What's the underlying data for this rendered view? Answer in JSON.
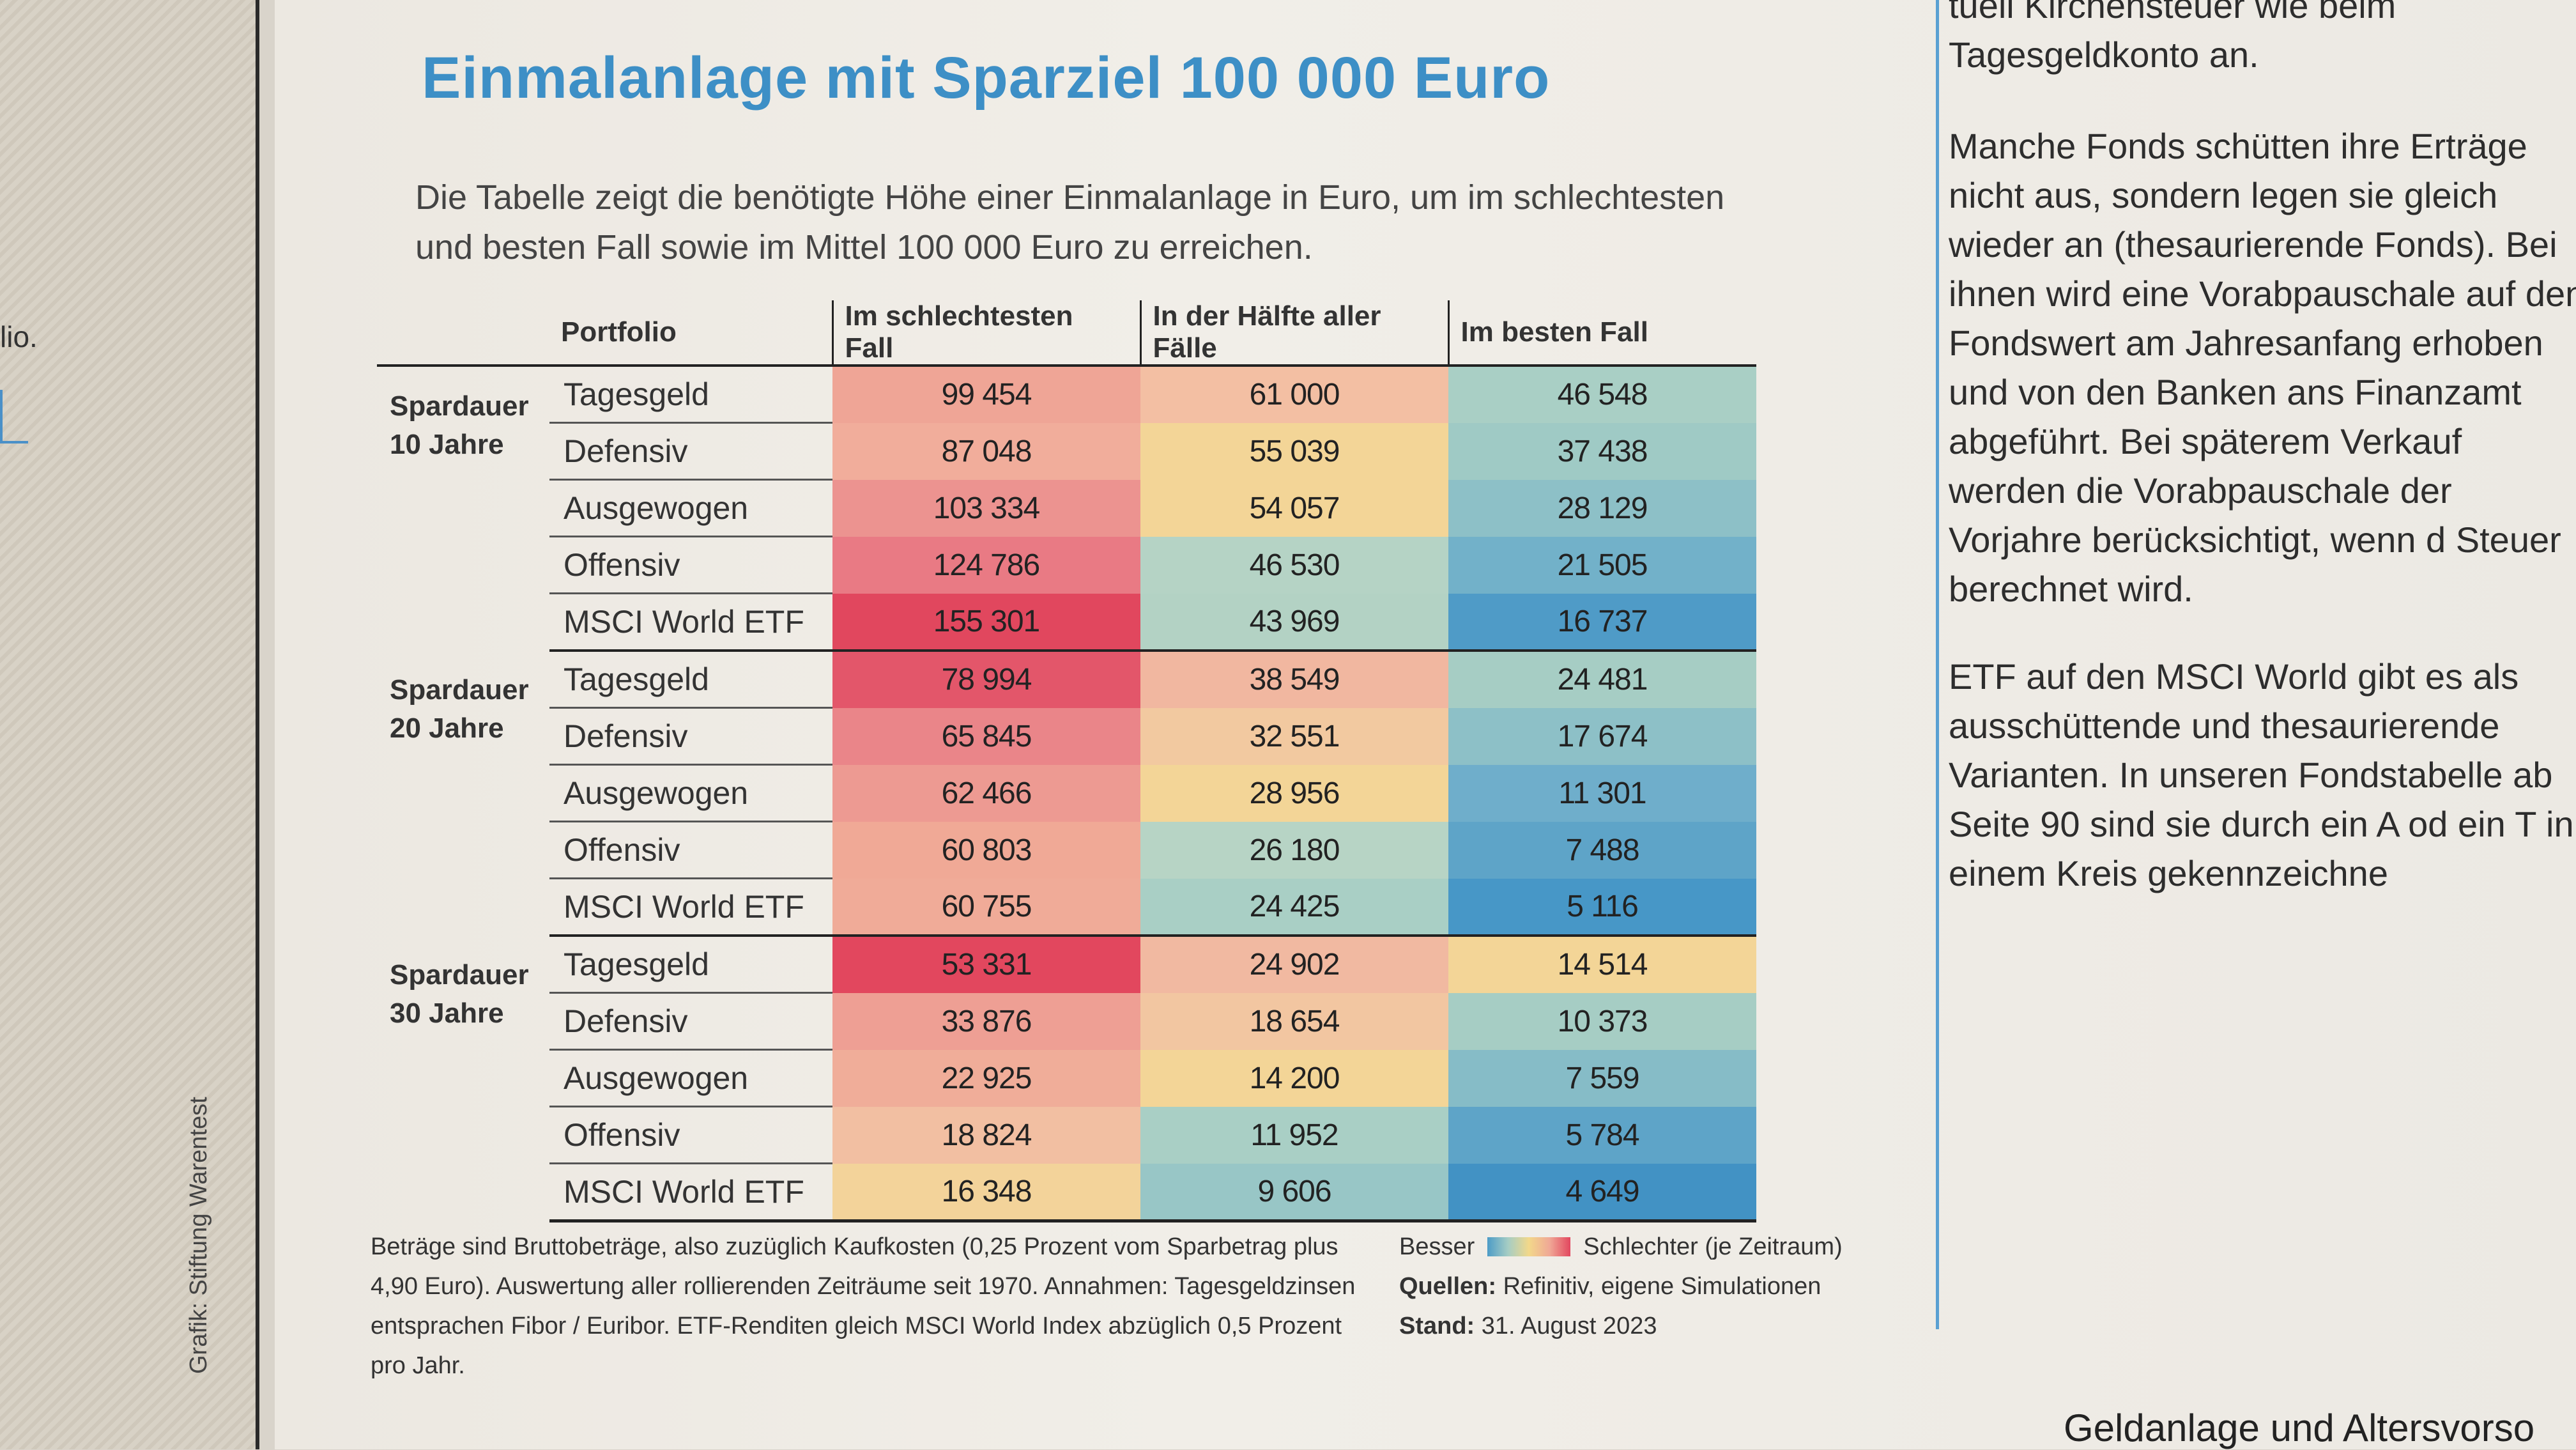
{
  "left_page": {
    "fragment": "lio.",
    "credit": "Grafik: Stiftung Warentest"
  },
  "title": "Einmalanlage mit Sparziel 100 000 Euro",
  "subtitle": "Die Tabelle zeigt die benötigte Höhe einer Einmalanlage in Euro, um im schlechtesten und besten Fall sowie im Mittel 100 000 Euro zu erreichen.",
  "table": {
    "headers": [
      "Portfolio",
      "Im schlechtesten Fall",
      "In der Hälfte aller Fälle",
      "Im besten Fall"
    ],
    "groups": [
      {
        "label1": "Spardauer",
        "label2": "10 Jahre",
        "rows": [
          {
            "portfolio": "Tagesgeld",
            "worst": "99 454",
            "median": "61 000",
            "best": "46 548",
            "c": [
              "#efa596",
              "#f3bfa3",
              "#a9cfc5"
            ]
          },
          {
            "portfolio": "Defensiv",
            "worst": "87 048",
            "median": "55 039",
            "best": "37 438",
            "c": [
              "#f1ad9b",
              "#f3d597",
              "#9fcac5"
            ]
          },
          {
            "portfolio": "Ausgewogen",
            "worst": "103 334",
            "median": "54 057",
            "best": "28 129",
            "c": [
              "#ec9390",
              "#f3d597",
              "#8dc0c7"
            ]
          },
          {
            "portfolio": "Offensiv",
            "worst": "124 786",
            "median": "46 530",
            "best": "21 505",
            "c": [
              "#e97a84",
              "#b5d3c5",
              "#72b1c9"
            ]
          },
          {
            "portfolio": "MSCI World ETF",
            "worst": "155 301",
            "median": "43 969",
            "best": "16 737",
            "c": [
              "#e1475e",
              "#b3d2c4",
              "#4f9bc7"
            ]
          }
        ]
      },
      {
        "label1": "Spardauer",
        "label2": "20 Jahre",
        "rows": [
          {
            "portfolio": "Tagesgeld",
            "worst": "78 994",
            "median": "38 549",
            "best": "24 481",
            "c": [
              "#e3566a",
              "#f1b7a0",
              "#a6cdc4"
            ]
          },
          {
            "portfolio": "Defensiv",
            "worst": "65 845",
            "median": "32 551",
            "best": "17 674",
            "c": [
              "#ea8589",
              "#f2c9a0",
              "#8dc0c7"
            ]
          },
          {
            "portfolio": "Ausgewogen",
            "worst": "62 466",
            "median": "28 956",
            "best": "11 301",
            "c": [
              "#ed9a92",
              "#f3d597",
              "#6faecb"
            ]
          },
          {
            "portfolio": "Offensiv",
            "worst": "60 803",
            "median": "26 180",
            "best": "7 488",
            "c": [
              "#f0a996",
              "#b7d4c5",
              "#5ea4c8"
            ]
          },
          {
            "portfolio": "MSCI World ETF",
            "worst": "60 755",
            "median": "24 425",
            "best": "5 116",
            "c": [
              "#f0ab98",
              "#a9cfc5",
              "#4797c7"
            ]
          }
        ]
      },
      {
        "label1": "Spardauer",
        "label2": "30 Jahre",
        "rows": [
          {
            "portfolio": "Tagesgeld",
            "worst": "53 331",
            "median": "24 902",
            "best": "14 514",
            "c": [
              "#e2475e",
              "#f1b9a1",
              "#f3d597"
            ]
          },
          {
            "portfolio": "Defensiv",
            "worst": "33 876",
            "median": "18 654",
            "best": "10 373",
            "c": [
              "#ee9f94",
              "#f2c6a1",
              "#a6cdc4"
            ]
          },
          {
            "portfolio": "Ausgewogen",
            "worst": "22 925",
            "median": "14 200",
            "best": "7 559",
            "c": [
              "#f0ad99",
              "#f3d597",
              "#86bcc7"
            ]
          },
          {
            "portfolio": "Offensiv",
            "worst": "18 824",
            "median": "11 952",
            "best": "5 784",
            "c": [
              "#f2bfa2",
              "#a9cfc5",
              "#5ea4c8"
            ]
          },
          {
            "portfolio": "MSCI World ETF",
            "worst": "16 348",
            "median": "9 606",
            "best": "4 649",
            "c": [
              "#f3d39a",
              "#98c6c6",
              "#4292c4"
            ]
          }
        ]
      }
    ]
  },
  "footnote": "Beträge sind Bruttobeträge, also zuzüglich Kaufkosten (0,25 Prozent vom Sparbetrag plus 4,90 Euro). Auswertung aller rollierenden Zeiträume seit 1970. Annahmen: Tagesgeldzinsen entsprachen Fibor / Euribor. ETF-Renditen gleich MSCI World Index abzüglich 0,5 Prozent pro Jahr.",
  "legend": {
    "better": "Besser",
    "worse": "Schlechter (je Zeitraum)",
    "sources_label": "Quellen:",
    "sources": "Refinitiv, eigene Simulationen",
    "date_label": "Stand:",
    "date": "31. August 2023"
  },
  "right_column": {
    "p0": "tuell Kirchensteuer wie beim Tagesgeldkonto an.",
    "p1": "Manche Fonds schütten ihre Erträge nicht aus, sondern legen sie gleich wieder an (thesaurierende Fonds). Bei ihnen wird eine Vorabpauschale auf den Fondswert am Jahresanfang erhoben und von den Banken ans Finanzamt abgeführt. Bei späterem Verkauf werden die Vorabpauschale der Vorjahre berücksichtigt, wenn d Steuer berechnet wird.",
    "p2": "ETF auf den MSCI World gibt es als ausschüttende und thesaurierende Varianten. In unseren Fondstabelle ab Seite 90 sind sie durch ein A od ein T in einem Kreis gekennzeichne"
  },
  "bottom_right": "Geldanlage und Altersvorso"
}
